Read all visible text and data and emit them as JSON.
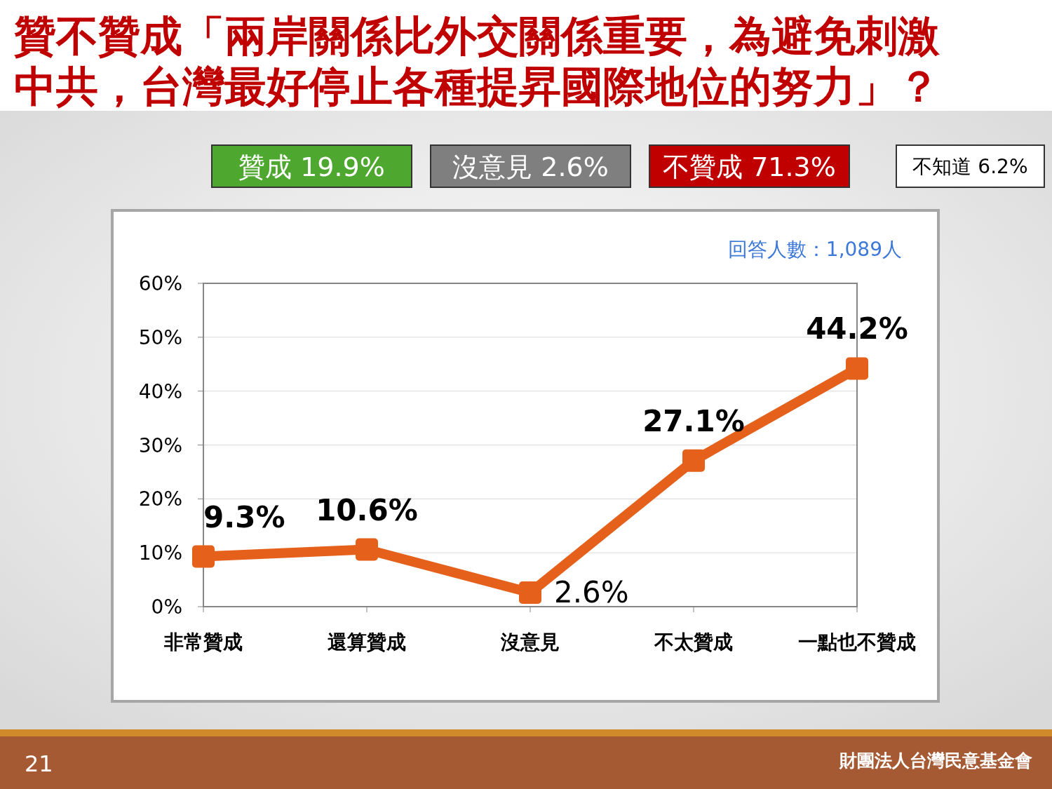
{
  "chart_data": {
    "type": "line",
    "title": "贊不贊成「兩岸關係比外交關係重要，為避免刺激中共，台灣最好停止各種提昇國際地位的努力」？",
    "categories": [
      "非常贊成",
      "還算贊成",
      "沒意見",
      "不太贊成",
      "一點也不贊成"
    ],
    "series": [
      {
        "color": "#e5601a",
        "values": [
          9.3,
          10.6,
          2.6,
          27.1,
          44.2
        ]
      }
    ],
    "ylim": [
      0,
      60
    ],
    "yticks": [
      {
        "value": 0,
        "label": "0%"
      },
      {
        "value": 10,
        "label": "10%"
      },
      {
        "value": 20,
        "label": "20%"
      },
      {
        "value": 30,
        "label": "30%"
      },
      {
        "value": 40,
        "label": "40%"
      },
      {
        "value": 50,
        "label": "50%"
      },
      {
        "value": 60,
        "label": "60%"
      }
    ],
    "grid": "y",
    "marker": "square",
    "line_style": "solid",
    "value_labels": [
      "9.3%",
      "10.6%",
      "2.6%",
      "27.1%",
      "44.2%"
    ],
    "annotations": [
      "贊成 19.9%",
      "沒意見 2.6%",
      "不贊成 71.3%",
      "不知道 6.2%",
      "回答人數：1,089人",
      "21",
      "財團法人台灣民意基金會"
    ]
  }
}
